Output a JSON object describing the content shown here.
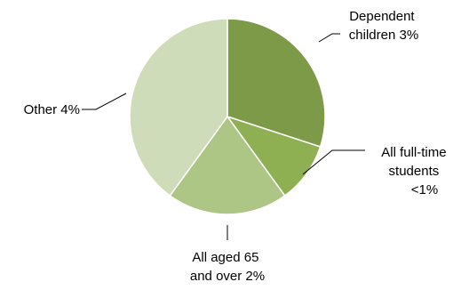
{
  "colors": {
    "dependent_children": "#7c9a48",
    "full_time_students": "#8fb052",
    "aged_65_and_over": "#adc685",
    "other": "#cfdcba"
  },
  "chart_data": {
    "type": "pie",
    "title": "",
    "labels": [
      "Dependent children 3%",
      "All full-time students <1%",
      "All aged 65 and over 2%",
      "Other 4%"
    ],
    "values": [
      3,
      1,
      2,
      4
    ],
    "legend": "none"
  },
  "labels": {
    "dependent_children": {
      "line1": "Dependent",
      "line2": "children 3%"
    },
    "full_time_students": {
      "line1": "All full-time",
      "line2": "students",
      "line3": "<1%"
    },
    "aged_65_and_over": {
      "line1": "All aged 65",
      "line2": "and over 2%"
    },
    "other": {
      "line1": "Other 4%"
    }
  }
}
